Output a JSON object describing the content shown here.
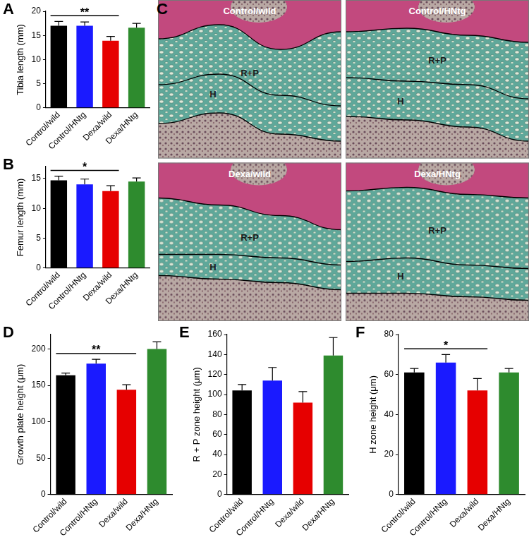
{
  "chart_data": [
    {
      "panel": "A",
      "type": "bar",
      "y_label": "Tibia length (mm)",
      "categories": [
        "Control/wild",
        "Control/HNtg",
        "Dexa/wild",
        "Dexa/HNtg"
      ],
      "values": [
        17.0,
        17.0,
        13.9,
        16.6
      ],
      "errors": [
        0.9,
        0.8,
        0.9,
        0.9
      ],
      "colors": [
        "#000000",
        "#1a1aff",
        "#e60000",
        "#2e8b2e"
      ],
      "ylim": [
        0,
        20
      ],
      "yticks": [
        0,
        5,
        10,
        15,
        20
      ],
      "grid": false,
      "significance": [
        {
          "from": "Control/wild",
          "to": "Dexa/wild",
          "label": "**"
        }
      ]
    },
    {
      "panel": "B",
      "type": "bar",
      "y_label": "Femur length (mm)",
      "categories": [
        "Control/wild",
        "Control/HNtg",
        "Dexa/wild",
        "Dexa/HNtg"
      ],
      "values": [
        14.7,
        14.0,
        12.9,
        14.5
      ],
      "errors": [
        0.7,
        0.9,
        0.9,
        0.6
      ],
      "colors": [
        "#000000",
        "#1a1aff",
        "#e60000",
        "#2e8b2e"
      ],
      "ylim": [
        0,
        17
      ],
      "yticks": [
        0,
        5,
        10,
        15
      ],
      "grid": false,
      "significance": [
        {
          "from": "Control/wild",
          "to": "Dexa/wild",
          "label": "*"
        }
      ]
    },
    {
      "panel": "D",
      "type": "bar",
      "y_label": "Growth plate height (μm)",
      "categories": [
        "Control/wild",
        "Control/HNtg",
        "Dexa/wild",
        "Dexa/HNtg"
      ],
      "values": [
        164,
        180,
        144,
        200
      ],
      "errors": [
        3,
        6,
        7,
        10
      ],
      "colors": [
        "#000000",
        "#1a1aff",
        "#e60000",
        "#2e8b2e"
      ],
      "ylim": [
        0,
        220
      ],
      "yticks": [
        0,
        50,
        100,
        150,
        200
      ],
      "grid": false,
      "significance": [
        {
          "from": "Control/wild",
          "to": "Dexa/wild",
          "label": "**"
        }
      ]
    },
    {
      "panel": "E",
      "type": "bar",
      "y_label": "R + P zone height (μm)",
      "categories": [
        "Control/wild",
        "Control/HNtg",
        "Dexa/wild",
        "Dexa/HNtg"
      ],
      "values": [
        104,
        114,
        92,
        139
      ],
      "errors": [
        6,
        13,
        11,
        18
      ],
      "colors": [
        "#000000",
        "#1a1aff",
        "#e60000",
        "#2e8b2e"
      ],
      "ylim": [
        0,
        160
      ],
      "yticks": [
        0,
        20,
        40,
        60,
        80,
        100,
        120,
        140,
        160
      ],
      "grid": false,
      "significance": []
    },
    {
      "panel": "F",
      "type": "bar",
      "y_label": "H zone height (μm)",
      "categories": [
        "Control/wild",
        "Control/HNtg",
        "Dexa/wild",
        "Dexa/HNtg"
      ],
      "values": [
        61,
        66,
        52,
        61
      ],
      "errors": [
        2,
        4,
        6,
        2
      ],
      "colors": [
        "#000000",
        "#1a1aff",
        "#e60000",
        "#2e8b2e"
      ],
      "ylim": [
        0,
        80
      ],
      "yticks": [
        0,
        20,
        40,
        60,
        80
      ],
      "grid": false,
      "significance": [
        {
          "from": "Control/wild",
          "to": "Dexa/wild",
          "label": "*"
        }
      ]
    }
  ],
  "micrographs": {
    "panel": "C",
    "images": [
      {
        "title": "Control/wild",
        "zones": [
          "R+P",
          "H"
        ]
      },
      {
        "title": "Control/HNtg",
        "zones": [
          "R+P",
          "H"
        ]
      },
      {
        "title": "Dexa/wild",
        "zones": [
          "R+P",
          "H"
        ]
      },
      {
        "title": "Dexa/HNtg",
        "zones": [
          "R+P",
          "H"
        ]
      }
    ]
  }
}
